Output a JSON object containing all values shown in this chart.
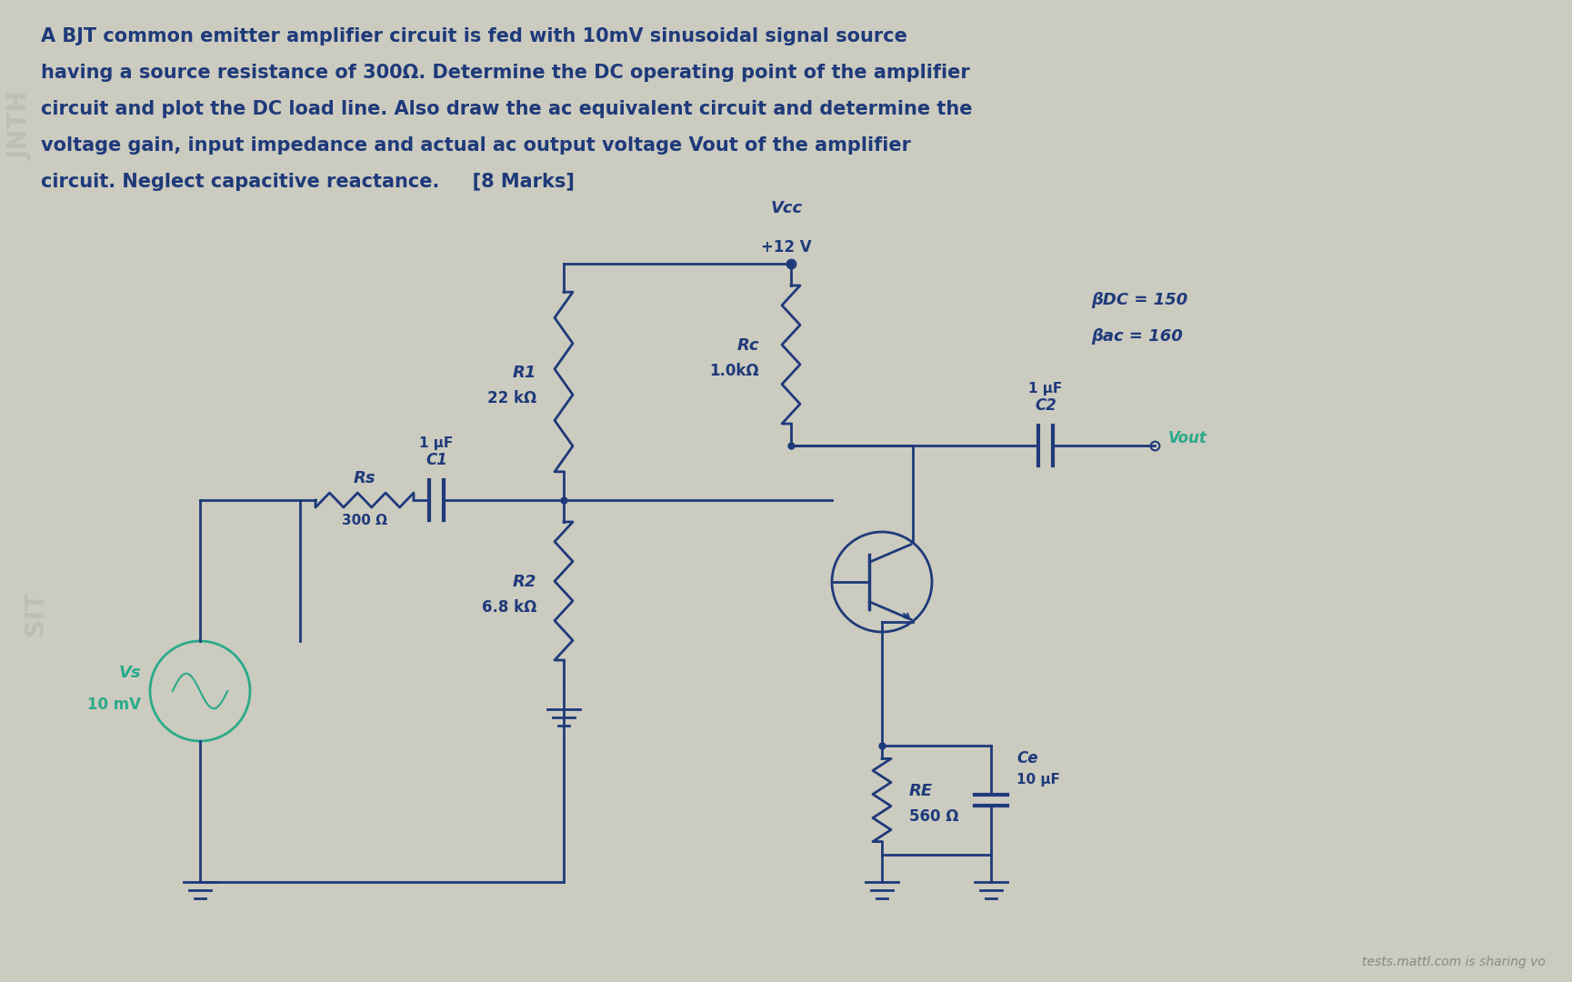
{
  "title_lines": [
    "A BJT common emitter amplifier circuit is fed with 10mV sinusoidal signal source",
    "having a source resistance of 300Ω. Determine the DC operating point of the amplifier",
    "circuit and plot the DC load line. Also draw the ac equivalent circuit and determine the",
    "voltage gain, input impedance and actual ac output voltage Vout of the amplifier",
    "circuit. Neglect capacitive reactance.     [8 Marks]"
  ],
  "bg_color": "#cccbc0",
  "text_color": "#1e3a7a",
  "circuit_color": "#1e3a7a",
  "vcc_label": "Vcc",
  "vcc_value": "+12 V",
  "rc_label": "Rc",
  "rc_value": "1.0kΩ",
  "r1_label": "R1",
  "r1_value": "22 kΩ",
  "r2_label": "R2",
  "r2_value": "6.8 kΩ",
  "rs_label": "Rs",
  "rs_value": "300 Ω",
  "c1_label": "C1",
  "c1_value": "1 μF",
  "c2_label": "C2",
  "c2_value": "1 μF",
  "ce_label": "Ce",
  "ce_value": "10 μF",
  "re_label": "RE",
  "re_value": "560 Ω",
  "vs_label": "Vs",
  "vs_value": "10 mV",
  "bdc_label": "βDC = 150",
  "bac_label": "βac = 160",
  "vout_label": "Vout",
  "footer": "tests.mattl.com is sharing vo"
}
